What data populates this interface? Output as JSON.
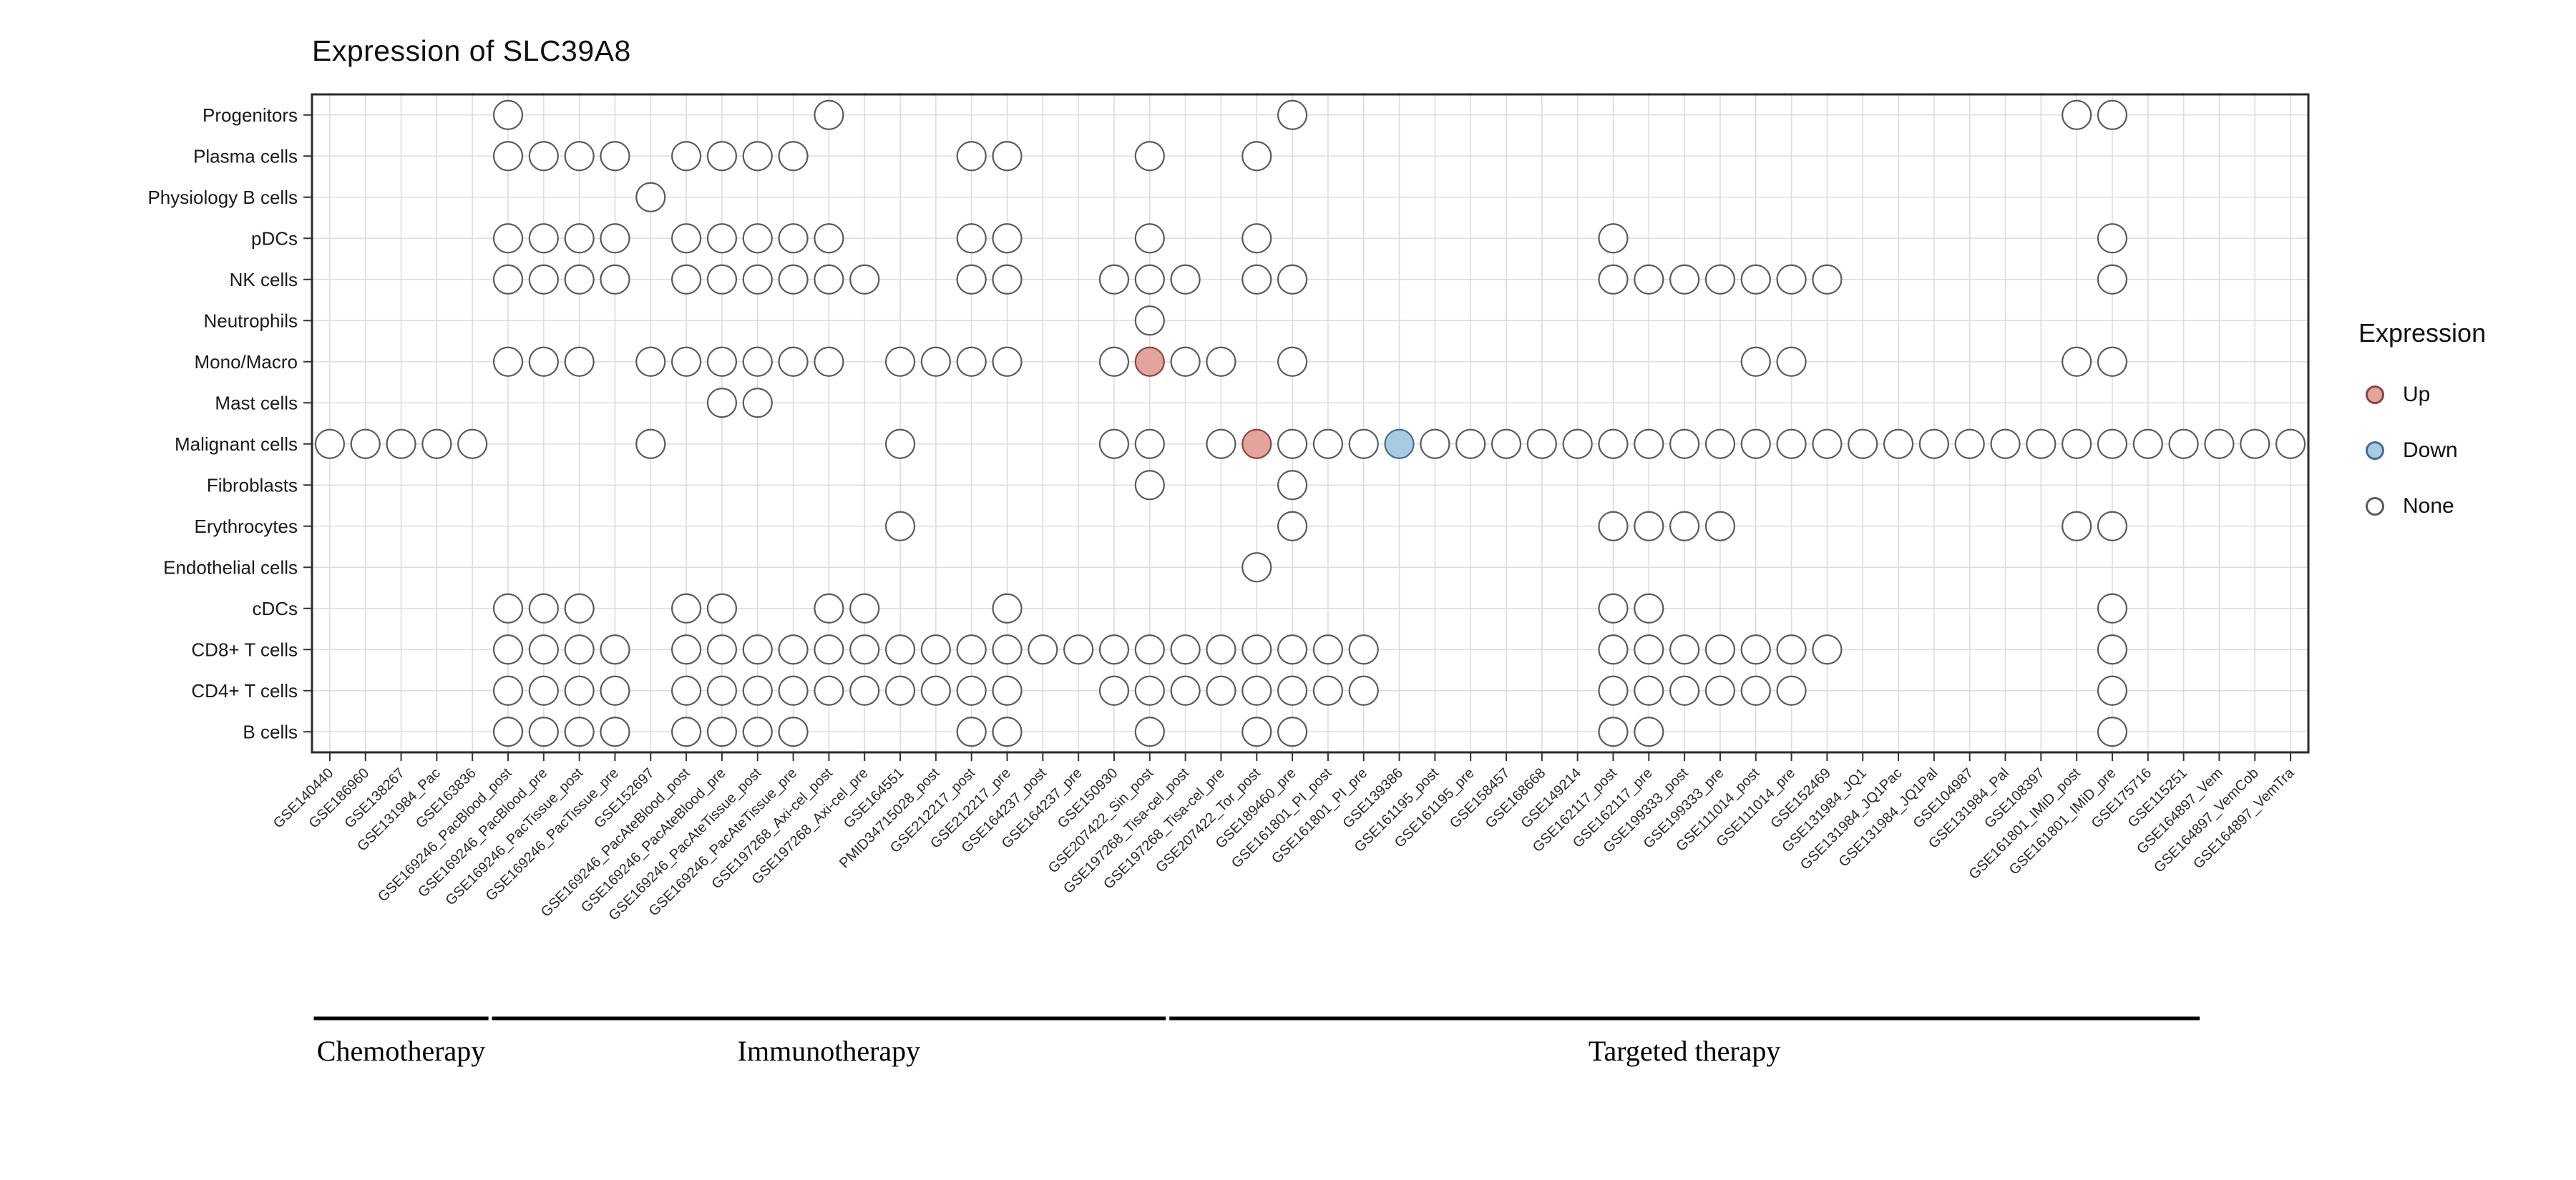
{
  "title": "Expression of SLC39A8",
  "legend": {
    "title": "Expression",
    "entries": [
      {
        "id": "up",
        "label": "Up",
        "fill": "#E2A49C",
        "stroke": "#8A453D"
      },
      {
        "id": "down",
        "label": "Down",
        "fill": "#A9CBE2",
        "stroke": "#3E6E96"
      },
      {
        "id": "none",
        "label": "None",
        "fill": "#FFFFFF",
        "stroke": "#5A5A5A"
      }
    ]
  },
  "chart_data": {
    "type": "heatmap",
    "title": "Expression of SLC39A8",
    "x_label_rotation_deg": 45,
    "legend_position": "right",
    "grid": true,
    "y_categories": [
      "Progenitors",
      "Plasma cells",
      "Physiology B cells",
      "pDCs",
      "NK cells",
      "Neutrophils",
      "Mono/Macro",
      "Mast cells",
      "Malignant cells",
      "Fibroblasts",
      "Erythrocytes",
      "Endothelial cells",
      "cDCs",
      "CD8+ T cells",
      "CD4+ T cells",
      "B cells"
    ],
    "x_categories": [
      "GSE140440",
      "GSE186960",
      "GSE138267",
      "GSE131984_Pac",
      "GSE163836",
      "GSE169246_PacBlood_post",
      "GSE169246_PacBlood_pre",
      "GSE169246_PacTissue_post",
      "GSE169246_PacTissue_pre",
      "GSE152697",
      "GSE169246_PacAteBlood_post",
      "GSE169246_PacAteBlood_pre",
      "GSE169246_PacAteTissue_post",
      "GSE169246_PacAteTissue_pre",
      "GSE197268_Axi-cel_post",
      "GSE197268_Axi-cel_pre",
      "GSE164551",
      "PMID34715028_post",
      "GSE212217_post",
      "GSE212217_pre",
      "GSE164237_post",
      "GSE164237_pre",
      "GSE150930",
      "GSE207422_Sin_post",
      "GSE197268_Tisa-cel_post",
      "GSE197268_Tisa-cel_pre",
      "GSE207422_Tor_post",
      "GSE189460_pre",
      "GSE161801_PI_post",
      "GSE161801_PI_pre",
      "GSE139386",
      "GSE161195_post",
      "GSE161195_pre",
      "GSE158457",
      "GSE168668",
      "GSE149214",
      "GSE162117_post",
      "GSE162117_pre",
      "GSE199333_post",
      "GSE199333_pre",
      "GSE111014_post",
      "GSE111014_pre",
      "GSE152469",
      "GSE131984_JQ1",
      "GSE131984_JQ1Pac",
      "GSE131984_JQ1Pal",
      "GSE104987",
      "GSE131984_Pal",
      "GSE108397",
      "GSE161801_IMiD_post",
      "GSE161801_IMiD_pre",
      "GSE175716",
      "GSE115251",
      "GSE164897_Vem",
      "GSE164897_VemCob",
      "GSE164897_VemTra"
    ],
    "cell_encoding": {
      ".": "no circle",
      "o": "none",
      "U": "up",
      "D": "down"
    },
    "matrix_rows": [
      ".....o........o............o.....................oo.....",
      ".....oooo.oooo....oo...o..o.............................",
      ".........o..............................................",
      ".....oooo.ooooo...oo...o..o.........o.............o.....",
      ".....oooo.oooooo..oo..ooo.oo........ooooooo.......o.....",
      ".......................o................................",
      ".....ooo.oooooo.oooo..oUoo.o............oo.......oo.....",
      "...........oo...........................................",
      "ooooo....o......o.....oo.oUoooDooooooooooooooooooooooooo",
      ".......................o...o............................",
      "................o..........o........oooo.........oo.....",
      "..........................o.............................",
      ".....ooo..oo..oo...o................oo............o.....",
      ".....oooo.oooooooooooooooooooo......ooooooo.......o.....",
      ".....oooo.oooooooooo..oooooooo......oooooo........o.....",
      ".....oooo.oooo....oo...o..oo........oo............o....."
    ],
    "highlights": [
      {
        "row": "Mono/Macro",
        "column": "GSE207422_Sin_post",
        "value": "up"
      },
      {
        "row": "Malignant cells",
        "column": "GSE207422_Tor_post",
        "value": "up"
      },
      {
        "row": "Malignant cells",
        "column": "GSE139386",
        "value": "down"
      }
    ],
    "x_groups": [
      {
        "id": "chemotherapy",
        "label": "Chemotherapy",
        "col_start": 1,
        "col_end": 5
      },
      {
        "id": "immunotherapy",
        "label": "Immunotherapy",
        "col_start": 6,
        "col_end": 24
      },
      {
        "id": "targeted-therapy",
        "label": "Targeted therapy",
        "col_start": 25,
        "col_end": 53
      }
    ],
    "legend": {
      "title": "Expression",
      "entries": [
        "Up",
        "Down",
        "None"
      ]
    }
  },
  "colors": {
    "grid": "#DCDCDC",
    "panel_border": "#2B2B2B",
    "tick": "#333333",
    "axis_text": "#1A1A1A",
    "group_line": "#000000",
    "states": {
      "up": {
        "fill": "#E2A49C",
        "stroke": "#8A453D"
      },
      "down": {
        "fill": "#A9CBE2",
        "stroke": "#3E6E96"
      },
      "none": {
        "fill": "#FFFFFF",
        "stroke": "#5A5A5A"
      }
    }
  }
}
